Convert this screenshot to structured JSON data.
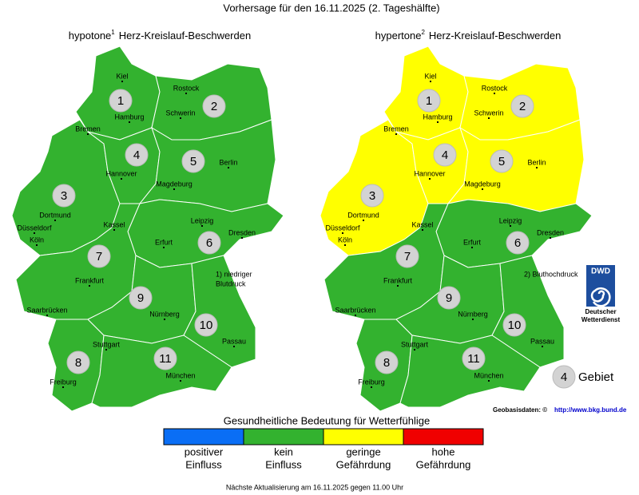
{
  "title": "Vorhersage für den 16.11.2025 (2. Tageshälfte)",
  "maps": [
    {
      "title_prefix": "hypotone",
      "superscript": "1",
      "title_suffix": "Herz-Kreislauf-Beschwerden",
      "footnote": [
        "1) niedriger",
        "Blutdruck"
      ],
      "regions": [
        {
          "number": "1",
          "level": 1
        },
        {
          "number": "2",
          "level": 1
        },
        {
          "number": "3",
          "level": 1
        },
        {
          "number": "4",
          "level": 1
        },
        {
          "number": "5",
          "level": 1
        },
        {
          "number": "6",
          "level": 1
        },
        {
          "number": "7",
          "level": 1
        },
        {
          "number": "8",
          "level": 1
        },
        {
          "number": "9",
          "level": 1
        },
        {
          "number": "10",
          "level": 1
        },
        {
          "number": "11",
          "level": 1
        }
      ]
    },
    {
      "title_prefix": "hypertone",
      "superscript": "2",
      "title_suffix": "Herz-Kreislauf-Beschwerden",
      "footnote": [
        "2) Bluthochdruck"
      ],
      "regions": [
        {
          "number": "1",
          "level": 2
        },
        {
          "number": "2",
          "level": 2
        },
        {
          "number": "3",
          "level": 2
        },
        {
          "number": "4",
          "level": 2
        },
        {
          "number": "5",
          "level": 2
        },
        {
          "number": "6",
          "level": 1
        },
        {
          "number": "7",
          "level": 1
        },
        {
          "number": "8",
          "level": 1
        },
        {
          "number": "9",
          "level": 1
        },
        {
          "number": "10",
          "level": 1
        },
        {
          "number": "11",
          "level": 1
        }
      ]
    }
  ],
  "cities": [
    "Kiel",
    "Rostock",
    "Hamburg",
    "Schwerin",
    "Bremen",
    "Berlin",
    "Hannover",
    "Magdeburg",
    "Dortmund",
    "Düsseldorf",
    "Köln",
    "Kassel",
    "Leipzig",
    "Dresden",
    "Erfurt",
    "Frankfurt",
    "Saarbrücken",
    "Nürnberg",
    "Passau",
    "Stuttgart",
    "München",
    "Freiburg"
  ],
  "legend": {
    "title": "Gesundheitliche Bedeutung für Wetterfühlige",
    "items": [
      {
        "label": [
          "positiver",
          "Einfluss"
        ],
        "color": "#0a6ef5"
      },
      {
        "label": [
          "kein",
          "Einfluss"
        ],
        "color": "#33b22f"
      },
      {
        "label": [
          "geringe",
          "Gefährdung"
        ],
        "color": "#ffff00"
      },
      {
        "label": [
          "hohe",
          "Gefährdung"
        ],
        "color": "#f00000"
      }
    ]
  },
  "key": {
    "number": "4",
    "label": "Gebiet"
  },
  "dwd": {
    "logo": "DWD",
    "name": [
      "Deutscher",
      "Wetterdienst"
    ]
  },
  "source": {
    "label": "Geobasisdaten: ©",
    "url": "http://www.bkg.bund.de"
  },
  "footer": "Nächste Aktualisierung am 16.11.2025 gegen 11.00 Uhr"
}
